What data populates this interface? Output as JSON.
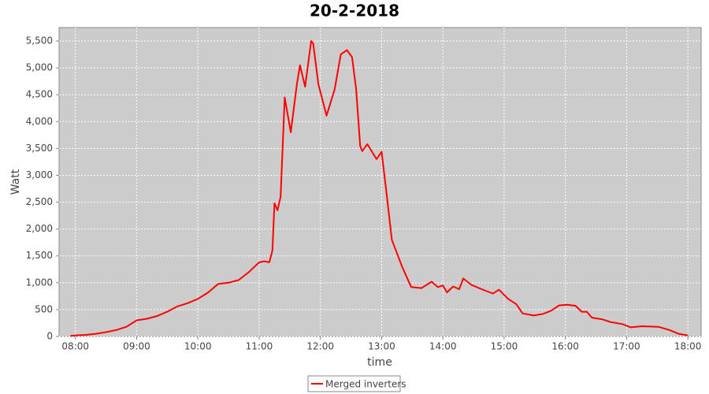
{
  "chart_data": {
    "type": "line",
    "title": "20-2-2018",
    "xlabel": "time",
    "ylabel": "Watt",
    "x": [
      "07:55",
      "08:00",
      "08:10",
      "08:20",
      "08:30",
      "08:40",
      "08:50",
      "09:00",
      "09:10",
      "09:20",
      "09:30",
      "09:40",
      "09:50",
      "10:00",
      "10:10",
      "10:20",
      "10:30",
      "10:40",
      "10:50",
      "11:00",
      "11:05",
      "11:10",
      "11:13",
      "11:15",
      "11:18",
      "11:21",
      "11:25",
      "11:31",
      "11:37",
      "11:40",
      "11:45",
      "11:51",
      "11:53",
      "11:58",
      "12:06",
      "12:14",
      "12:20",
      "12:26",
      "12:31",
      "12:35",
      "12:39",
      "12:41",
      "12:46",
      "12:55",
      "13:00",
      "13:04",
      "13:10",
      "13:20",
      "13:29",
      "13:39",
      "13:49",
      "13:55",
      "14:00",
      "14:04",
      "14:10",
      "14:16",
      "14:20",
      "14:28",
      "14:38",
      "14:49",
      "14:55",
      "15:04",
      "15:12",
      "15:18",
      "15:29",
      "15:38",
      "15:46",
      "15:54",
      "16:02",
      "16:10",
      "16:16",
      "16:21",
      "16:26",
      "16:36",
      "16:44",
      "16:56",
      "17:04",
      "17:15",
      "17:31",
      "17:42",
      "17:51",
      "18:00"
    ],
    "series": [
      {
        "name": "Merged inverters",
        "color": "#ff0000",
        "values": [
          10,
          20,
          30,
          50,
          80,
          120,
          180,
          300,
          330,
          380,
          460,
          560,
          620,
          700,
          820,
          980,
          1000,
          1050,
          1200,
          1380,
          1400,
          1380,
          1600,
          2480,
          2350,
          2600,
          4450,
          3800,
          4700,
          5050,
          4650,
          5500,
          5450,
          4700,
          4110,
          4600,
          5250,
          5330,
          5200,
          4600,
          3550,
          3450,
          3580,
          3300,
          3440,
          2800,
          1800,
          1300,
          920,
          900,
          1020,
          920,
          950,
          820,
          930,
          880,
          1080,
          960,
          880,
          800,
          870,
          700,
          600,
          430,
          390,
          420,
          480,
          580,
          590,
          570,
          460,
          460,
          350,
          320,
          270,
          230,
          170,
          190,
          180,
          120,
          50,
          20
        ]
      }
    ],
    "xlim": [
      "07:44",
      "18:13"
    ],
    "xticks": [
      "08:00",
      "09:00",
      "10:00",
      "11:00",
      "12:00",
      "13:00",
      "14:00",
      "15:00",
      "16:00",
      "17:00",
      "18:00"
    ],
    "ylim": [
      0,
      5750
    ],
    "yticks": [
      0,
      500,
      {
        "value": 1000,
        "label": "1,000"
      },
      {
        "value": 1500,
        "label": "1,500"
      },
      {
        "value": 2000,
        "label": "2,000"
      },
      {
        "value": 2500,
        "label": "2,500"
      },
      {
        "value": 3000,
        "label": "3,000"
      },
      {
        "value": 3500,
        "label": "3,500"
      },
      {
        "value": 4000,
        "label": "4,000"
      },
      {
        "value": 4500,
        "label": "4,500"
      },
      {
        "value": 5000,
        "label": "5,000"
      },
      {
        "value": 5500,
        "label": "5,500"
      }
    ],
    "grid": true,
    "legend": "bottom"
  }
}
